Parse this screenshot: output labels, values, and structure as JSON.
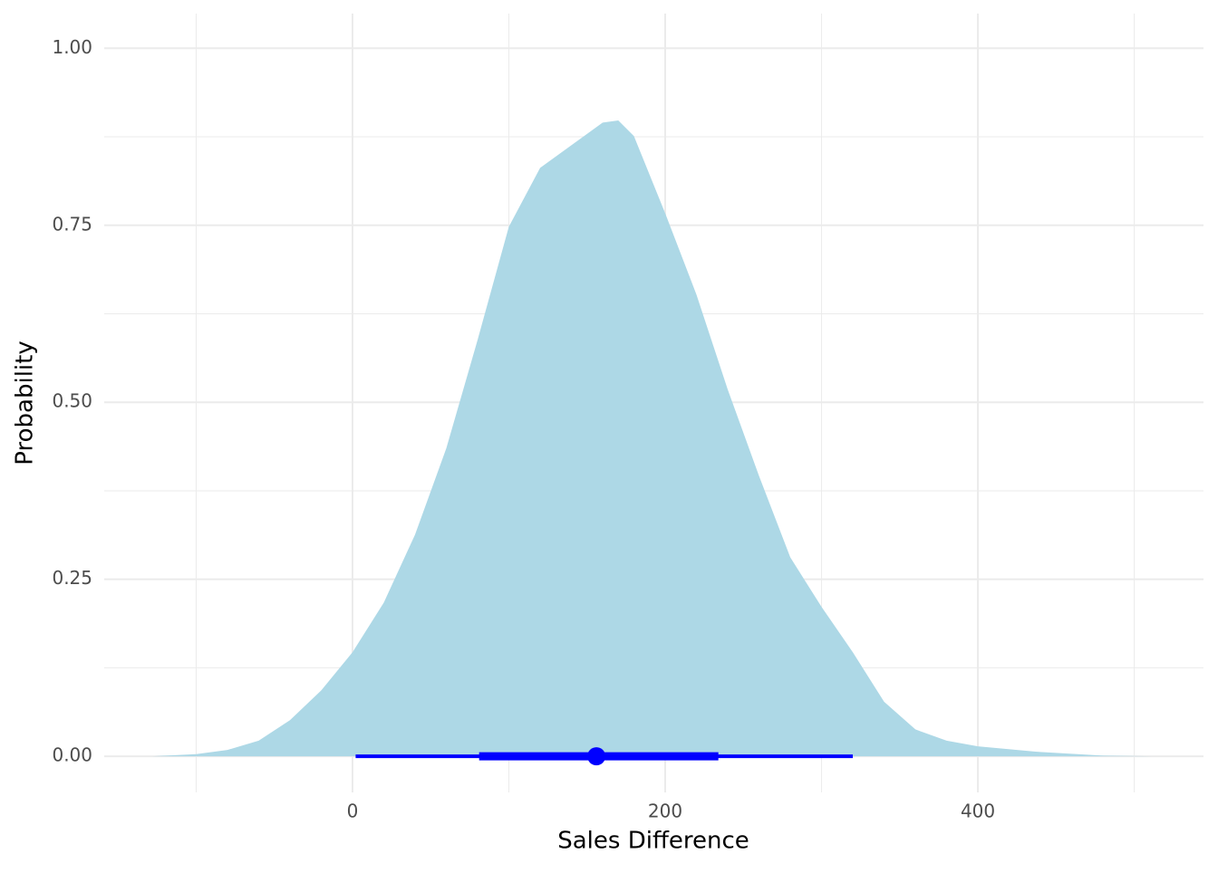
{
  "chart_data": {
    "type": "halfeye",
    "x_label": "Sales Difference",
    "y_label": "Probability",
    "xlim": [
      -158.8,
      544.3
    ],
    "ylim": [
      -0.051,
      1.049
    ],
    "xticks": [
      0,
      200,
      400
    ],
    "xminor": [
      -100,
      100,
      300,
      500
    ],
    "yticks": [
      {
        "value": 0,
        "label": "0.00"
      },
      {
        "value": 0.25,
        "label": "0.25"
      },
      {
        "value": 0.5,
        "label": "0.50"
      },
      {
        "value": 0.75,
        "label": "0.75"
      },
      {
        "value": 1,
        "label": "1.00"
      }
    ],
    "yminor": [
      0.125,
      0.375,
      0.625,
      0.875
    ],
    "grid": true,
    "density": {
      "color": "#add8e6",
      "x": [
        -128,
        -100,
        -80,
        -60,
        -40,
        -20,
        0,
        20,
        40,
        60,
        80,
        100,
        120,
        140,
        160,
        170,
        180,
        200,
        220,
        240,
        260,
        280,
        300,
        320,
        340,
        360,
        380,
        400,
        440,
        480,
        512
      ],
      "y": [
        0,
        0.003,
        0.009,
        0.022,
        0.051,
        0.093,
        0.147,
        0.217,
        0.313,
        0.435,
        0.588,
        0.748,
        0.831,
        0.863,
        0.895,
        0.898,
        0.876,
        0.767,
        0.652,
        0.518,
        0.396,
        0.281,
        0.211,
        0.147,
        0.077,
        0.038,
        0.022,
        0.014,
        0.006,
        0.001,
        0
      ]
    },
    "interval_color": "#0000ff",
    "point": 156,
    "interval_66": [
      81,
      234
    ],
    "interval_95": [
      2,
      320
    ]
  }
}
